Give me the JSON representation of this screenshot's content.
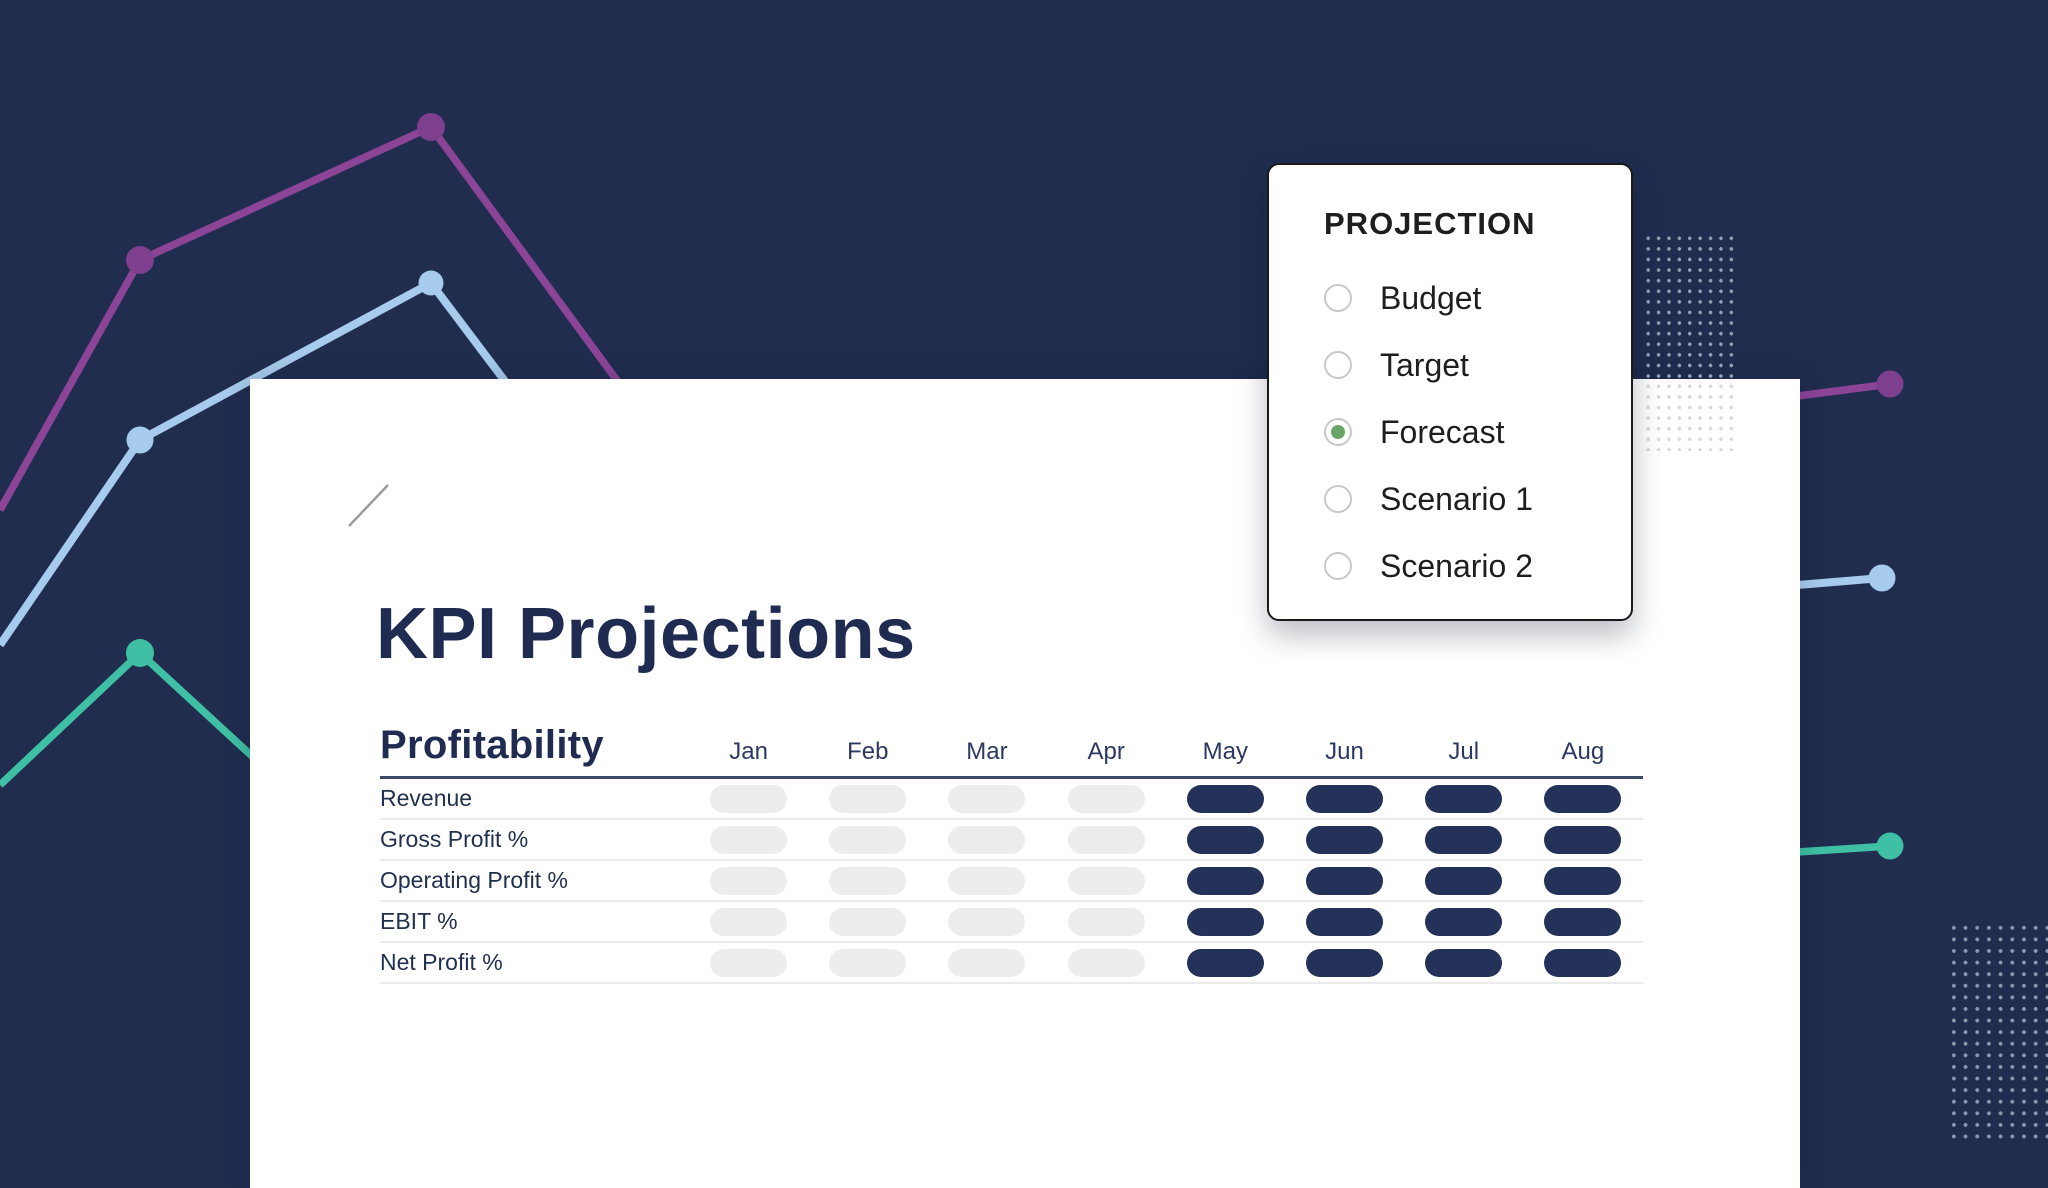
{
  "colors": {
    "navy_bg": "#202D4F",
    "navy_text": "#1F2B50",
    "navy_pill": "#24325A",
    "rule_dark": "#3E4A66",
    "row_border": "#EBEBEB",
    "pill_gray": "#EDEDED",
    "purple": "#8C4497",
    "purple_dot": "#7D3F8E",
    "blue": "#A7CBEC",
    "teal": "#3FBFA4",
    "green": "#68A568",
    "radio_ring": "#C8C8C8",
    "panel_border": "#1A1A1A",
    "panel_text": "#1E1E1E",
    "tick_gray": "#9B9B9B",
    "dot_navy": "#96A0B3",
    "dot_navy2": "#8E98AB",
    "dot_white": "#D8D8DD"
  },
  "content": {
    "title": "KPI Projections",
    "table": {
      "section_title": "Profitability",
      "months": [
        "Jan",
        "Feb",
        "Mar",
        "Apr",
        "May",
        "Jun",
        "Jul",
        "Aug"
      ],
      "month_states": [
        "empty",
        "empty",
        "empty",
        "empty",
        "filled",
        "filled",
        "filled",
        "filled"
      ],
      "rows": [
        "Revenue",
        "Gross Profit %",
        "Operating Profit %",
        "EBIT %",
        "Net Profit %"
      ]
    }
  },
  "projection_panel": {
    "title": "PROJECTION",
    "options": [
      {
        "label": "Budget",
        "selected": false
      },
      {
        "label": "Target",
        "selected": false
      },
      {
        "label": "Forecast",
        "selected": true
      },
      {
        "label": "Scenario 1",
        "selected": false
      },
      {
        "label": "Scenario 2",
        "selected": false
      }
    ]
  }
}
